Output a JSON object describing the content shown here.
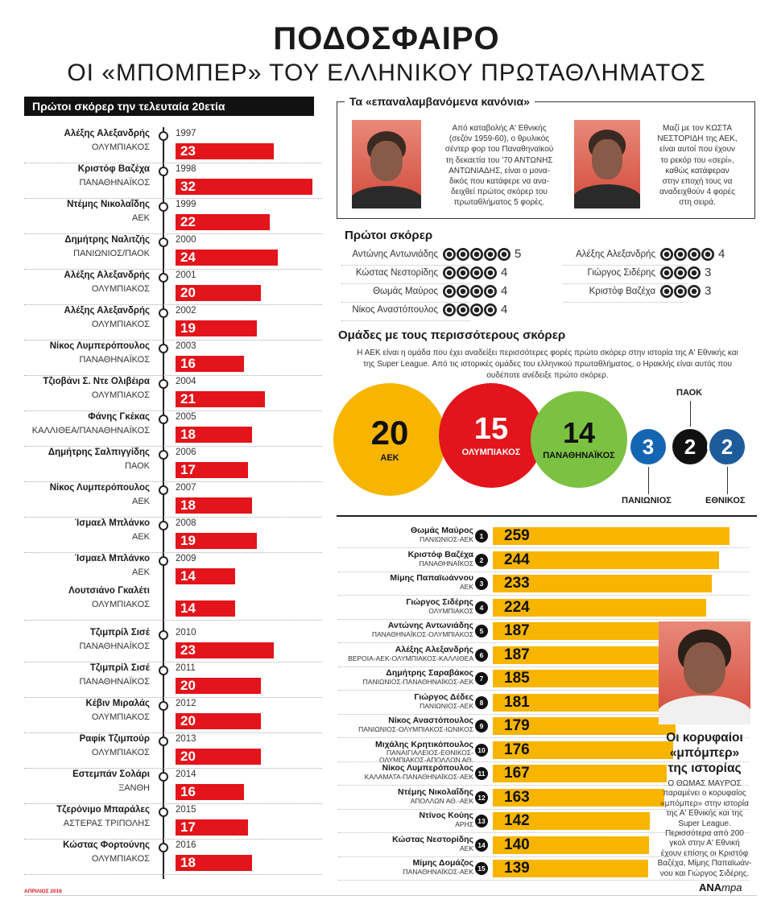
{
  "header": {
    "title": "ΠΟΔΟΣΦΑΙΡΟ",
    "subtitle": "ΟΙ «ΜΠΟΜΠΕΡ» ΤΟΥ ΕΛΛΗΝΙΚΟΥ ΠΡΩΤΑΘΛΗΜΑΤΟΣ"
  },
  "timeline": {
    "header": "Πρώτοι σκόρερ την τελευταία 20ετία",
    "entries": [
      {
        "name": "Αλέξης Αλεξανδρής",
        "club": "ΟΛΥΜΠΙΑΚΟΣ",
        "year": "1997",
        "goals": "23"
      },
      {
        "name": "Κριστόφ Βαζέχα",
        "club": "ΠΑΝΑΘΗΝΑΪΚΟΣ",
        "year": "1998",
        "goals": "32"
      },
      {
        "name": "Ντέμης Νικολαΐδης",
        "club": "ΑΕΚ",
        "year": "1999",
        "goals": "22"
      },
      {
        "name": "Δημήτρης Ναλιτζής",
        "club": "ΠΑΝΙΩΝΙΟΣ/ΠΑΟΚ",
        "year": "2000",
        "goals": "24"
      },
      {
        "name": "Αλέξης Αλεξανδρής",
        "club": "ΟΛΥΜΠΙΑΚΟΣ",
        "year": "2001",
        "goals": "20"
      },
      {
        "name": "Αλέξης Αλεξανδρής",
        "club": "ΟΛΥΜΠΙΑΚΟΣ",
        "year": "2002",
        "goals": "19"
      },
      {
        "name": "Νίκος Λυμπερόπουλος",
        "club": "ΠΑΝΑΘΗΝΑΪΚΟΣ",
        "year": "2003",
        "goals": "16"
      },
      {
        "name": "Τζιοβάνι Σ. Ντε Ολιβέιρα",
        "club": "ΟΛΥΜΠΙΑΚΟΣ",
        "year": "2004",
        "goals": "21"
      },
      {
        "name": "Φάνης Γκέκας",
        "club": "ΚΑΛΛΙΘΕΑ/ΠΑΝΑΘΗΝΑΪΚΟΣ",
        "year": "2005",
        "goals": "18"
      },
      {
        "name": "Δημήτρης Σαλπιγγίδης",
        "club": "ΠΑΟΚ",
        "year": "2006",
        "goals": "17"
      },
      {
        "name": "Νίκος Λυμπερόπουλος",
        "club": "ΑΕΚ",
        "year": "2007",
        "goals": "18"
      },
      {
        "name": "Ίσμαελ Μπλάνκο",
        "club": "ΑΕΚ",
        "year": "2008",
        "goals": "19"
      },
      {
        "name": "Ίσμαελ Μπλάνκο",
        "club": "ΑΕΚ",
        "year": "2009",
        "goals": "14"
      },
      {
        "name": "Λουτσιάνο Γκαλέτι",
        "club": "ΟΛΥΜΠΙΑΚΟΣ",
        "year": "",
        "goals": "14"
      },
      {
        "name": "Τζιμπρίλ Σισέ",
        "club": "ΠΑΝΑΘΗΝΑΪΚΟΣ",
        "year": "2010",
        "goals": "23"
      },
      {
        "name": "Τζιμπρίλ Σισέ",
        "club": "ΠΑΝΑΘΗΝΑΪΚΟΣ",
        "year": "2011",
        "goals": "20"
      },
      {
        "name": "Κέβιν Μιραλάς",
        "club": "ΟΛΥΜΠΙΑΚΟΣ",
        "year": "2012",
        "goals": "20"
      },
      {
        "name": "Ραφίκ Τζιμπούρ",
        "club": "ΟΛΥΜΠΙΑΚΟΣ",
        "year": "2013",
        "goals": "20"
      },
      {
        "name": "Εστεμπάν Σολάρι",
        "club": "ΞΑΝΘΗ",
        "year": "2014",
        "goals": "16"
      },
      {
        "name": "Τζερόνιμο Μπαράλες",
        "club": "ΑΣΤΕΡΑΣ ΤΡΙΠΟΛΗΣ",
        "year": "2015",
        "goals": "17"
      },
      {
        "name": "Κώστας Φορτούνης",
        "club": "ΟΛΥΜΠΙΑΚΟΣ",
        "year": "2016",
        "goals": "18"
      }
    ]
  },
  "repeated": {
    "label": "Τα «επαναλαμβανόμενα κανόνια»",
    "text1": [
      "Από καταβολής Α' Εθνικής",
      "(σεζόν 1959-60), ο θρυλικός",
      "σέντερ φορ του Παναθηναϊκού",
      "τη δεκαετία του '70 ΑΝΤΩΝΗΣ",
      "ΑΝΤΩΝΙΑΔΗΣ, είναι ο μονα-",
      "δικός που κατάφερε να ανα-",
      "δειχθεί πρώτος σκόρερ του",
      "πρωταθλήματος 5 φορές."
    ],
    "text2": [
      "Μαζί με τον ΚΩΣΤΑ",
      "ΝΕΣΤΟΡΙΔΗ της ΑΕΚ,",
      "είναι αυτοί που έχουν",
      "το ρεκόρ του «σερί»,",
      "καθώς κατάφεραν",
      "στην εποχή τους να",
      "αναδειχθούν 4 φορές",
      "στη σειρά."
    ]
  },
  "top_scorers": {
    "title": "Πρώτοι σκόρερ",
    "left": [
      {
        "name": "Αντώνης Αντωνιάδης",
        "count": "5"
      },
      {
        "name": "Κώστας Νεστορίδης",
        "count": "4"
      },
      {
        "name": "Θωμάς Μαύρος",
        "count": "4"
      },
      {
        "name": "Νίκος Αναστόπουλος",
        "count": "4"
      }
    ],
    "right": [
      {
        "name": "Αλέξης Αλεξανδρής",
        "count": "4"
      },
      {
        "name": "Γιώργος Σιδέρης",
        "count": "3"
      },
      {
        "name": "Κριστόφ Βαζέχα",
        "count": "3"
      }
    ]
  },
  "teams": {
    "title": "Ομάδες με τους περισσότερους σκόρερ",
    "desc_lines": [
      "Η ΑΕΚ είναι η ομάδα που έχει αναδείξει περισσότερες φορές πρώτο σκόρερ στην ιστορία της Α' Εθνικής και",
      "της Super League. Από τις ιστορικές ομάδες του ελληνικού πρωταθλήματος, ο Ηρακλής είναι αυτός που",
      "ουδέποτε ανέδειξε πρώτο σκόρερ."
    ],
    "items": [
      {
        "count": "20",
        "label": "ΑΕΚ",
        "color": "#f7b500",
        "text": "#111111"
      },
      {
        "count": "15",
        "label": "ΟΛΥΜΠΙΑΚΟΣ",
        "color": "#e3141b",
        "text": "#ffffff"
      },
      {
        "count": "14",
        "label": "ΠΑΝΑΘΗΝΑΪΚΟΣ",
        "color": "#7cc242",
        "text": "#111111"
      },
      {
        "count": "3",
        "label": "ΠΑΝΙΩΝΙΟΣ",
        "color": "#1466b3",
        "text": "#ffffff"
      },
      {
        "count": "2",
        "label": "ΠΑΟΚ",
        "color": "#111111",
        "text": "#ffffff"
      },
      {
        "count": "2",
        "label": "ΕΘΝΙΚΟΣ",
        "color": "#1e5b9a",
        "text": "#ffffff"
      }
    ]
  },
  "ranking": {
    "rows": [
      {
        "rank": "1",
        "name": "Θωμάς Μαύρος",
        "clubs": [
          "ΠΑΝΙΩΝΙΟΣ-ΑΕΚ"
        ],
        "goals": "259"
      },
      {
        "rank": "2",
        "name": "Κριστόφ Βαζέχα",
        "clubs": [
          "ΠΑΝΑΘΗΝΑΪΚΟΣ"
        ],
        "goals": "244"
      },
      {
        "rank": "3",
        "name": "Μίμης Παπαϊωάννου",
        "clubs": [
          "ΑΕΚ"
        ],
        "goals": "233"
      },
      {
        "rank": "4",
        "name": "Γιώργος Σιδέρης",
        "clubs": [
          "ΟΛΥΜΠΙΑΚΟΣ"
        ],
        "goals": "224"
      },
      {
        "rank": "5",
        "name": "Αντώνης Αντωνιάδης",
        "clubs": [
          "ΠΑΝΑΘΗΝΑΪΚΟΣ-ΟΛΥΜΠΙΑΚΟΣ"
        ],
        "goals": "187"
      },
      {
        "rank": "6",
        "name": "Αλέξης Αλεξανδρής",
        "clubs": [
          "ΒΕΡΟΙΑ-ΑΕΚ-ΟΛΥΜΠΙΑΚΟΣ-ΚΑΛΛΙΘΕΑ"
        ],
        "goals": "187"
      },
      {
        "rank": "7",
        "name": "Δημήτρης Σαραβάκος",
        "clubs": [
          "ΠΑΝΙΩΝΙΟΣ-ΠΑΝΑΘΗΝΑΪΚΟΣ-ΑΕΚ"
        ],
        "goals": "185"
      },
      {
        "rank": "8",
        "name": "Γιώργος Δέδες",
        "clubs": [
          "ΠΑΝΙΩΝΙΟΣ-ΑΕΚ"
        ],
        "goals": "181"
      },
      {
        "rank": "9",
        "name": "Νίκος Αναστόπουλος",
        "clubs": [
          "ΠΑΝΙΩΝΙΟΣ-ΟΛΥΜΠΙΑΚΟΣ-ΙΩΝΙΚΟΣ"
        ],
        "goals": "179"
      },
      {
        "rank": "10",
        "name": "Μιχάλης Κρητικόπουλος",
        "clubs": [
          "ΠΑΝΑΙΓΙΑΛΕΙΟΣ-ΕΘΝΙΚΟΣ-",
          "ΟΛΥΜΠΙΑΚΟΣ-ΑΠΟΛΛΩΝ ΑΘ."
        ],
        "goals": "176"
      },
      {
        "rank": "11",
        "name": "Νίκος Λυμπερόπουλος",
        "clubs": [
          "ΚΑΛΑΜΑΤΑ-ΠΑΝΑΘΗΝΑΪΚΟΣ-ΑΕΚ"
        ],
        "goals": "167"
      },
      {
        "rank": "12",
        "name": "Ντέμης Νικολαΐδης",
        "clubs": [
          "ΑΠΟΛΛΩΝ ΑΘ.-ΑΕΚ"
        ],
        "goals": "163"
      },
      {
        "rank": "13",
        "name": "Ντίνος Κούης",
        "clubs": [
          "ΑΡΗΣ"
        ],
        "goals": "142"
      },
      {
        "rank": "14",
        "name": "Κώστας Νεστορίδης",
        "clubs": [
          "ΑΕΚ"
        ],
        "goals": "140"
      },
      {
        "rank": "15",
        "name": "Μίμης Δομάζος",
        "clubs": [
          "ΠΑΝΑΘΗΝΑΪΚΟΣ-ΑΕΚ"
        ],
        "goals": "139"
      }
    ]
  },
  "caption": {
    "title_lines": [
      "Οι κορυφαίοι",
      "«μπόμπερ»",
      "της ιστορίας"
    ],
    "text_lines": [
      "Ο ΘΩΜΑΣ ΜΑΥΡΟΣ",
      "παραμένει ο κορυφαίος",
      "«μπόμπερ» στην ιστορία",
      "της Α' Εθνικής και της",
      "Super League.",
      "Περισσότερα από 200",
      "γκολ στην Α' Εθνική",
      "έχουν επίσης οι Κριστόφ",
      "Βαζέχα, Μίμης Παπαϊωάν-",
      "νου και Γιώργος Σιδέρης."
    ]
  },
  "footer": {
    "date": "ΑΠΡΙΛΙΟΣ 2016",
    "logo_a": "ΑΝΑ",
    "logo_b": "mpa"
  },
  "colors": {
    "timeline_bar": "#e3141b",
    "ranking_bar": "#f7b500"
  }
}
